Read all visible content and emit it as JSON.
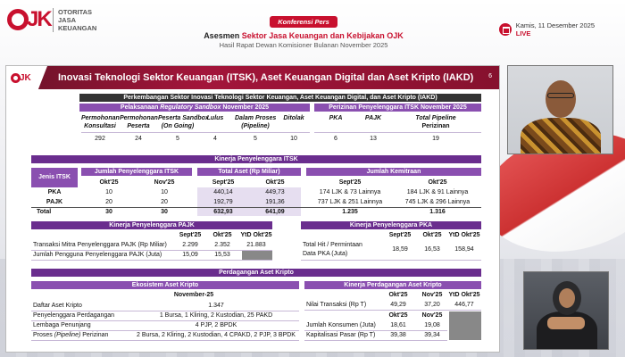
{
  "header": {
    "org_lines": [
      "OTORITAS",
      "JASA",
      "KEUANGAN"
    ],
    "badge": "Konferensi Pers",
    "title_a": "Asesmen ",
    "title_b": "Sektor Jasa Keuangan dan Kebijakan OJK",
    "subtitle": "Hasil Rapat Dewan Komisioner Bulanan November 2025",
    "date": "Kamis, 11 Desember 2025",
    "live": "LIVE"
  },
  "colors": {
    "brand_red": "#c8102e",
    "slide_header": "#8d1231",
    "section_purple": "#6a2d8e",
    "dark_bar": "#333333"
  },
  "slide": {
    "title": "Inovasi Teknologi Sektor Keuangan (ITSK), Aset Keuangan Digital dan Aset Kripto (IAKD)",
    "page": "6",
    "top_bar": "Perkembangan Sektor Inovasi Teknologi Sektor Keuangan, Aset Keuangan Digital, dan Aset Kripto (IAKD)",
    "sandbox": {
      "heading_pre": "Pelaksanaan ",
      "heading_it": "Regulatory Sandbox",
      "heading_post": " November 2025",
      "cols": [
        "Permohonan Konsultasi",
        "Permohonan Peserta",
        "Peserta Sandbox (On Going)",
        "Lulus",
        "Dalam Proses (Pipeline)",
        "Ditolak"
      ],
      "col_lines": [
        [
          "Permohonan",
          "Konsultasi"
        ],
        [
          "Permohonan",
          "Peserta"
        ],
        [
          "Peserta Sandbox",
          "(On Going)"
        ],
        [
          "Lulus",
          ""
        ],
        [
          "Dalam Proses",
          "(Pipeline)"
        ],
        [
          "Ditolak",
          ""
        ]
      ],
      "values": [
        "292",
        "24",
        "5",
        "4",
        "5",
        "10"
      ]
    },
    "perizinan": {
      "heading": "Perizinan Penyelenggara ITSK November 2025",
      "col_lines": [
        [
          "PKA",
          ""
        ],
        [
          "PAJK",
          ""
        ],
        [
          "Total Pipeline",
          "Perizinan"
        ]
      ],
      "values": [
        "6",
        "13",
        "19"
      ]
    },
    "kinerja_itsk": {
      "heading": "Kinerja Penyelenggara ITSK",
      "jenis_label": "Jenis ITSK",
      "jumlah_heading": "Jumlah Penyelenggara ITSK",
      "aset_heading": "Total Aset (Rp Miliar)",
      "kemitraan_heading": "Jumlah Kemitraan",
      "periods_a": [
        "Okt'25",
        "Nov'25"
      ],
      "periods_b": [
        "Sept'25",
        "Okt'25"
      ],
      "periods_c": [
        "Sept'25",
        "Okt'25"
      ],
      "rows": [
        {
          "jenis": "PKA",
          "okt": "10",
          "nov": "10",
          "aset_sep": "440,14",
          "aset_okt": "449,73",
          "kem_sep": "174 LJK & 73 Lainnya",
          "kem_okt": "184 LJK & 91 Lainnya"
        },
        {
          "jenis": "PAJK",
          "okt": "20",
          "nov": "20",
          "aset_sep": "192,79",
          "aset_okt": "191,36",
          "kem_sep": "737 LJK & 251 Lainnya",
          "kem_okt": "745 LJK & 296 Lainnya"
        },
        {
          "jenis": "Total",
          "okt": "30",
          "nov": "30",
          "aset_sep": "632,93",
          "aset_okt": "641,09",
          "kem_sep": "1.235",
          "kem_okt": "1.316"
        }
      ]
    },
    "pajk": {
      "heading": "Kinerja Penyelenggara PAJK",
      "cols": [
        "Sept'25",
        "Okt'25",
        "YtD Okt'25"
      ],
      "rows": [
        {
          "label": "Transaksi Mitra Penyelenggara PAJK (Rp Miliar)",
          "v": [
            "2.299",
            "2.352",
            "21.883"
          ]
        },
        {
          "label": "Jumlah Pengguna Penyelenggara PAJK (Juta)",
          "v": [
            "15,09",
            "15,53",
            ""
          ]
        }
      ]
    },
    "pka": {
      "heading": "Kinerja Penyelenggara PKA",
      "cols": [
        "Sept'25",
        "Okt'25",
        "YtD Okt'25"
      ],
      "label_lines": [
        "Total Hit / Permintaan",
        "Data PKA (Juta)"
      ],
      "values": [
        "18,59",
        "16,53",
        "158,94"
      ]
    },
    "kripto": {
      "heading": "Perdagangan Aset Kripto",
      "ekosistem_heading": "Ekosistem Aset Kripto",
      "eko_period": "November-25",
      "eko_rows": [
        {
          "label": "Daftar Aset Kripto",
          "value": "1.347"
        },
        {
          "label": "Penyelenggara Perdagangan",
          "value": "1 Bursa, 1 Kliring, 2 Kustodian, 25 PAKD"
        },
        {
          "label": "Lembaga Penunjang",
          "value": "4 PJP, 2 BPDK"
        },
        {
          "label_pre": "Proses ",
          "label_it": "(Pipeline)",
          "label_post": " Perizinan",
          "value": "2 Bursa, 2 Kliring, 2 Kustodian, 4 CPAKD, 2 PJP, 3 BPDK"
        }
      ],
      "kinerja_heading": "Kinerja Perdagangan Aset Kripto",
      "k_cols": [
        "Okt'25",
        "Nov'25",
        "YtD Okt'25"
      ],
      "transaksi": {
        "label": "Nilai Transaksi (Rp T)",
        "v": [
          "49,29",
          "37,20",
          "446,77"
        ]
      },
      "k_cols2": [
        "Okt'25",
        "Nov'25"
      ],
      "k_rows2": [
        {
          "label": "Jumlah Konsumen (Juta)",
          "v": [
            "18,61",
            "19,08"
          ]
        },
        {
          "label": "Kapitalisasi Pasar (Rp T)",
          "v": [
            "39,38",
            "39,34"
          ]
        }
      ]
    }
  }
}
